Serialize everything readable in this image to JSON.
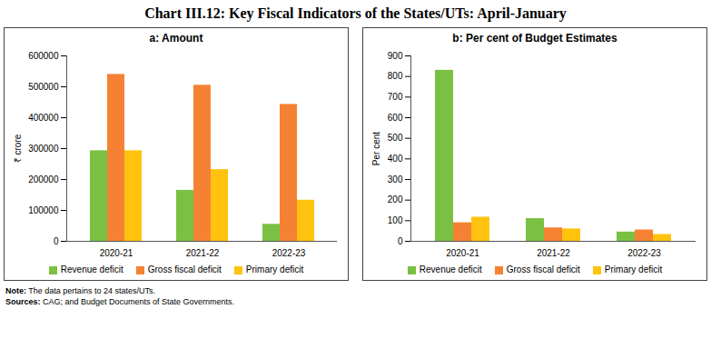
{
  "title": "Chart III.12: Key Fiscal Indicators of the States/UTs: April-January",
  "note": "Note: The data pertains to 24 states/UTs.",
  "sources": "Sources: CAG; and Budget Documents of State Governments.",
  "chart_data": [
    {
      "type": "bar",
      "title": "a: Amount",
      "ylabel": "₹ crore",
      "categories": [
        "2020-21",
        "2021-22",
        "2022-23"
      ],
      "series": [
        {
          "name": "Revenue deficit",
          "color": "#7ac143",
          "values": [
            293000,
            165000,
            55000
          ]
        },
        {
          "name": "Gross fiscal deficit",
          "color": "#f58233",
          "values": [
            540000,
            505000,
            443000
          ]
        },
        {
          "name": "Primary deficit",
          "color": "#ffc20e",
          "values": [
            293000,
            232000,
            133000
          ]
        }
      ],
      "ylim": [
        0,
        600000
      ],
      "yticks": [
        0,
        100000,
        200000,
        300000,
        400000,
        500000,
        600000
      ],
      "grid": false,
      "legend": "bottom"
    },
    {
      "type": "bar",
      "title": "b: Per cent of Budget Estimates",
      "ylabel": "Per cent",
      "categories": [
        "2020-21",
        "2021-22",
        "2022-23"
      ],
      "series": [
        {
          "name": "Revenue deficit",
          "color": "#7ac143",
          "values": [
            830,
            110,
            45
          ]
        },
        {
          "name": "Gross fiscal deficit",
          "color": "#f58233",
          "values": [
            90,
            65,
            55
          ]
        },
        {
          "name": "Primary deficit",
          "color": "#ffc20e",
          "values": [
            117,
            60,
            33
          ]
        }
      ],
      "ylim": [
        0,
        900
      ],
      "yticks": [
        0,
        100,
        200,
        300,
        400,
        500,
        600,
        700,
        800,
        900
      ],
      "grid": false,
      "legend": "bottom"
    }
  ]
}
